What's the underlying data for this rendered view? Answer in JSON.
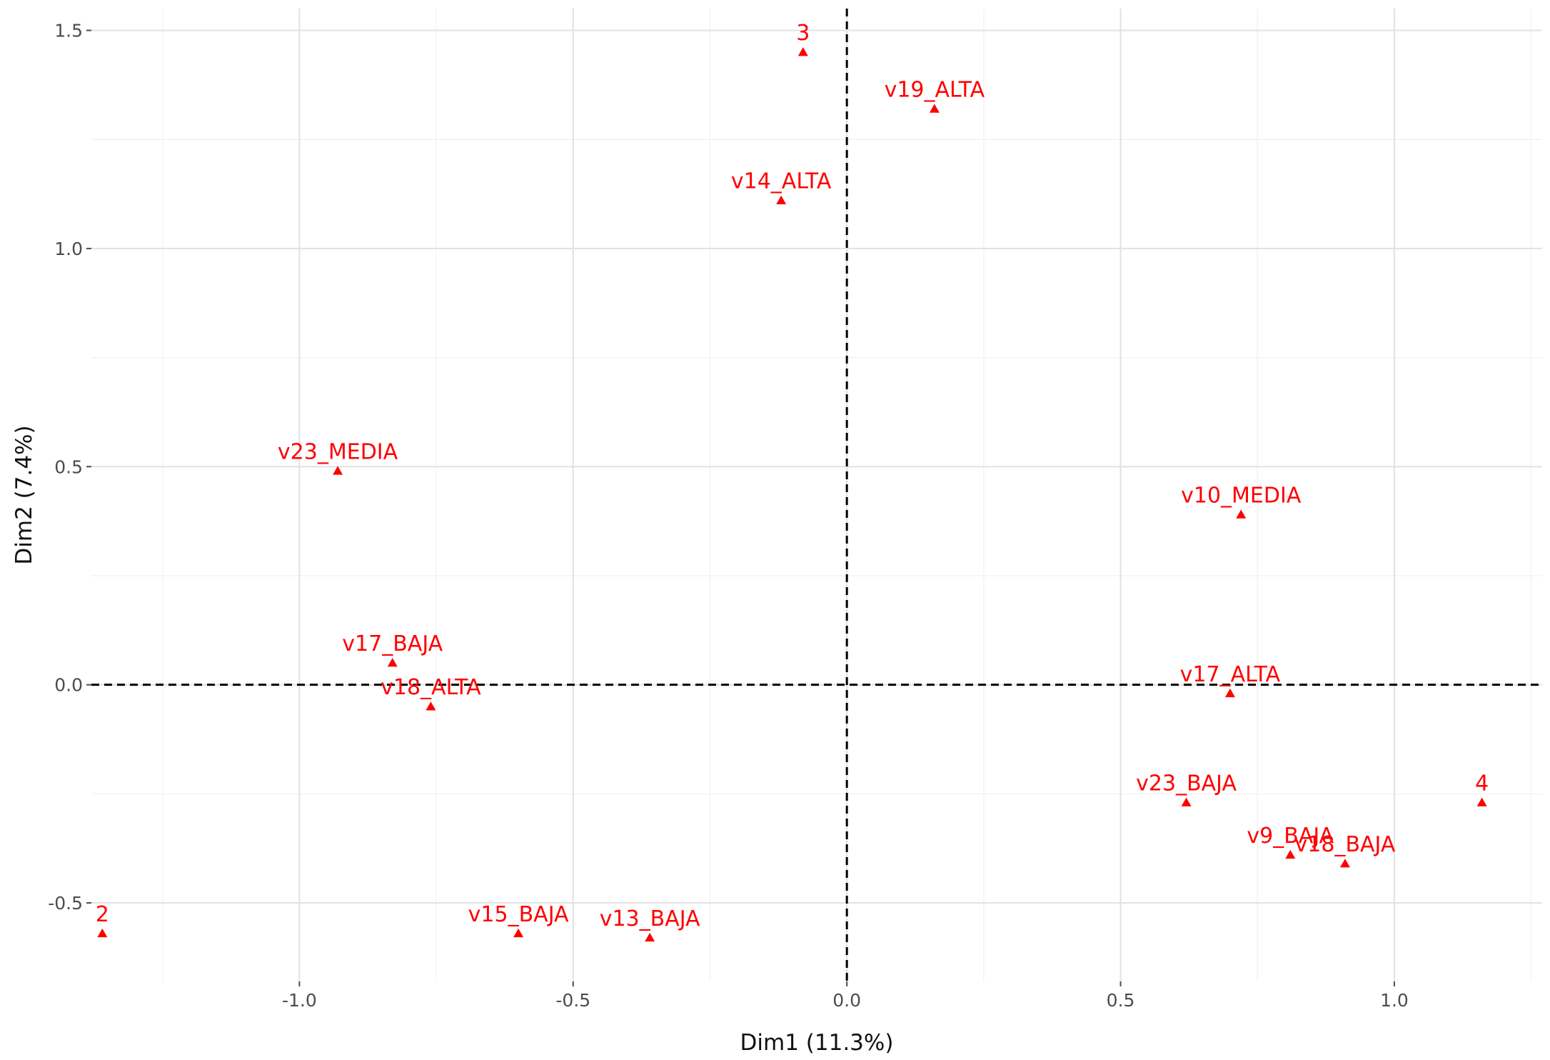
{
  "chart_data": {
    "type": "scatter",
    "title": "",
    "xlabel": "Dim1 (11.3%)",
    "ylabel": "Dim2 (7.4%)",
    "xlim": [
      -1.38,
      1.27
    ],
    "ylim": [
      -0.68,
      1.55
    ],
    "x_major_ticks": [
      -1.0,
      -0.5,
      0.0,
      0.5,
      1.0
    ],
    "x_tick_labels": [
      "-1.0",
      "-0.5",
      "0.0",
      "0.5",
      "1.0"
    ],
    "y_major_ticks": [
      -0.5,
      0.0,
      0.5,
      1.0,
      1.5
    ],
    "y_tick_labels": [
      "-0.5",
      "0.0",
      "0.5",
      "1.0",
      "1.5"
    ],
    "x_minor_ticks": [
      -1.25,
      -0.75,
      -0.25,
      0.25,
      0.75,
      1.25
    ],
    "y_minor_ticks": [
      -0.25,
      0.25,
      0.75,
      1.25
    ],
    "reference_lines": {
      "x": 0.0,
      "y": 0.0,
      "style": "dashed"
    },
    "grid": true,
    "legend": "none",
    "point_color": "#ff0000",
    "marker": "triangle",
    "points": [
      {
        "label": "3",
        "x": -0.08,
        "y": 1.45
      },
      {
        "label": "v19_ALTA",
        "x": 0.16,
        "y": 1.32
      },
      {
        "label": "v14_ALTA",
        "x": -0.12,
        "y": 1.11
      },
      {
        "label": "v23_MEDIA",
        "x": -0.93,
        "y": 0.49
      },
      {
        "label": "v10_MEDIA",
        "x": 0.72,
        "y": 0.39
      },
      {
        "label": "v17_BAJA",
        "x": -0.83,
        "y": 0.05
      },
      {
        "label": "v18_ALTA",
        "x": -0.76,
        "y": -0.05
      },
      {
        "label": "v17_ALTA",
        "x": 0.7,
        "y": -0.02
      },
      {
        "label": "v23_BAJA",
        "x": 0.62,
        "y": -0.27
      },
      {
        "label": "4",
        "x": 1.16,
        "y": -0.27
      },
      {
        "label": "v9_BAJA",
        "x": 0.81,
        "y": -0.39
      },
      {
        "label": "v18_BAJA",
        "x": 0.91,
        "y": -0.41
      },
      {
        "label": "2",
        "x": -1.36,
        "y": -0.57
      },
      {
        "label": "v15_BAJA",
        "x": -0.6,
        "y": -0.57
      },
      {
        "label": "v13_BAJA",
        "x": -0.36,
        "y": -0.58
      }
    ]
  }
}
